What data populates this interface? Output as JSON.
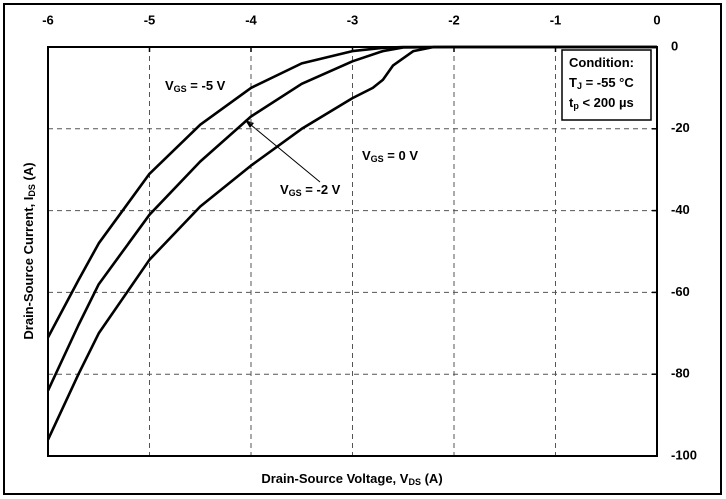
{
  "chart_data": {
    "type": "line",
    "xlabel": [
      "Drain-Source Voltage, V",
      "DS",
      " (A)"
    ],
    "ylabel": [
      "Drain-Source Current, I",
      "DS",
      " (A)"
    ],
    "xlim": [
      -6,
      0
    ],
    "xticks": [
      -6,
      -5,
      -4,
      -3,
      -2,
      -1,
      0
    ],
    "ylim": [
      -100,
      0
    ],
    "yticks": [
      0,
      -20,
      -40,
      -60,
      -80,
      -100
    ],
    "grid": true,
    "condition": [
      [
        "Condition:"
      ],
      [
        "T",
        "J",
        " = -55 °C"
      ],
      [
        "t",
        "p",
        " < 200 µs"
      ]
    ],
    "series": [
      {
        "label": [
          "V",
          "GS",
          " = -5 V"
        ],
        "color": "#000000",
        "x": [
          -6,
          -5.7,
          -5.5,
          -5,
          -4.5,
          -4,
          -3.5,
          -3,
          -2.7,
          -2.5,
          -2,
          -1,
          0
        ],
        "values": [
          -71,
          -57,
          -48,
          -31,
          -19,
          -10,
          -4,
          -1,
          -0.2,
          0,
          0,
          0,
          0
        ]
      },
      {
        "label": [
          "V",
          "GS",
          " = -2 V"
        ],
        "color": "#000000",
        "x": [
          -6,
          -5.7,
          -5.5,
          -5,
          -4.5,
          -4,
          -3.5,
          -3,
          -2.7,
          -2.5,
          -2,
          -1,
          0
        ],
        "values": [
          -84,
          -68,
          -58,
          -41,
          -28,
          -17,
          -9,
          -3.5,
          -1,
          -0.1,
          0,
          0,
          0
        ]
      },
      {
        "label": [
          "V",
          "GS",
          " = 0 V"
        ],
        "color": "#000000",
        "x": [
          -6,
          -5.7,
          -5.5,
          -5,
          -4.5,
          -4,
          -3.5,
          -3,
          -2.8,
          -2.7,
          -2.6,
          -2.4,
          -2.2,
          -1,
          0
        ],
        "values": [
          -96,
          -80,
          -70,
          -52,
          -39,
          -29,
          -20,
          -12.5,
          -10,
          -8,
          -4.5,
          -1,
          0,
          0,
          0
        ]
      }
    ]
  }
}
